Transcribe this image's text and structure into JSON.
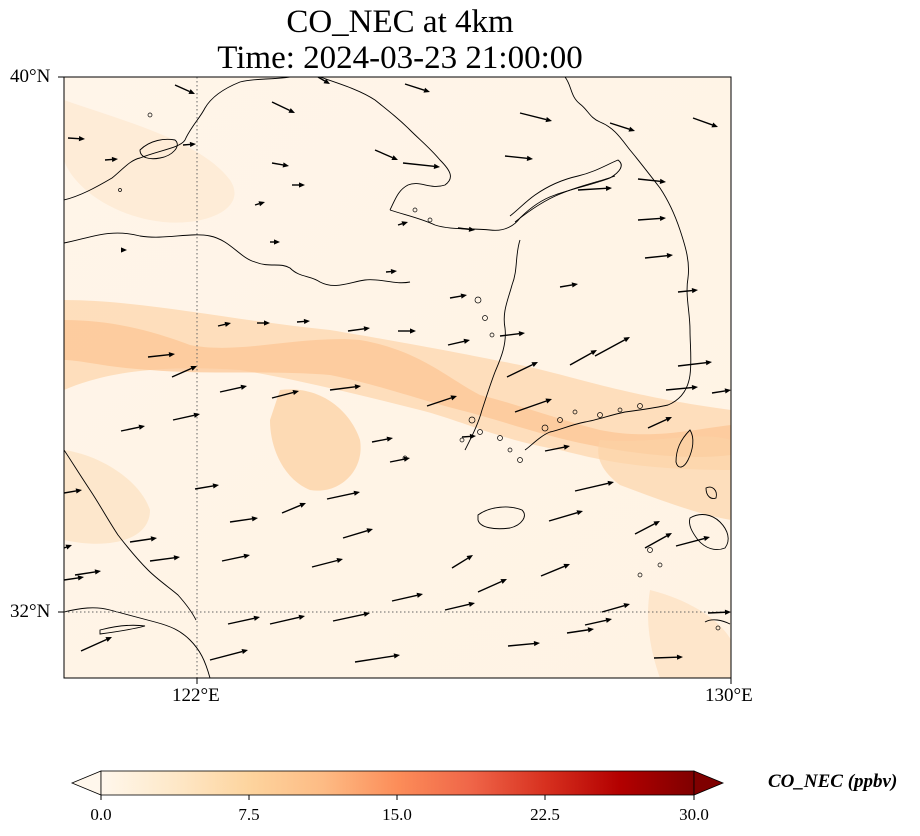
{
  "figure": {
    "title_line1": "CO_NEC at 4km",
    "title_line2": "Time: 2024-03-23 21:00:00"
  },
  "map": {
    "lat_range": [
      31.1,
      40.0
    ],
    "lon_range": [
      120.0,
      130.0
    ],
    "lat_ticks": [
      "40°N",
      "32°N"
    ],
    "lon_ticks": [
      "122°E",
      "130°E"
    ],
    "gridlines": "dotted",
    "coastlines": true,
    "vector_field": "wind arrows",
    "colormap": "OrRd"
  },
  "colorbar": {
    "label": "CO_NEC (ppbv)",
    "min": 0.0,
    "max": 30.0,
    "extend": "both",
    "ticks": [
      "0.0",
      "7.5",
      "15.0",
      "22.5",
      "30.0"
    ],
    "colors": [
      "#fff7ec",
      "#fee8c8",
      "#fdd49e",
      "#fdbb84",
      "#fc8d59",
      "#ef6548",
      "#d7301f",
      "#b30000",
      "#7f0000"
    ]
  }
}
